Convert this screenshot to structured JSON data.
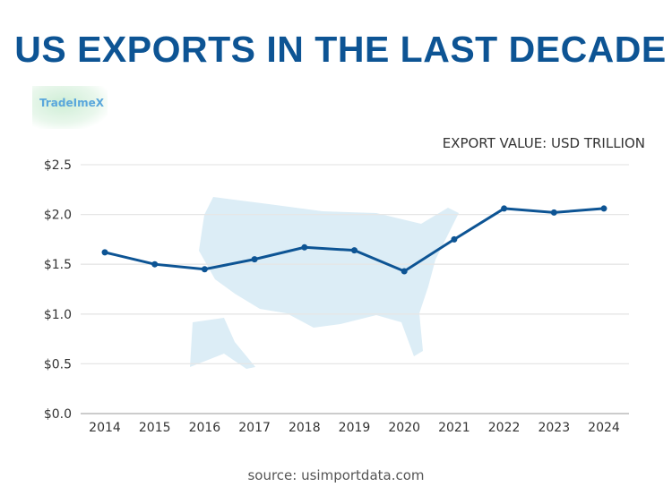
{
  "title": "US EXPORTS IN THE LAST DECADE",
  "logo_text": "TradeImeX",
  "source": "source: usimportdata.com",
  "colors": {
    "title": "#0d5494",
    "line": "#0d5494",
    "map": "#dcedf6"
  },
  "chart_data": {
    "type": "line",
    "title": "US EXPORTS IN THE LAST DECADE",
    "ylabel": "EXPORT VALUE: USD TRILLION",
    "xlabel": "",
    "categories": [
      "2014",
      "2015",
      "2016",
      "2017",
      "2018",
      "2019",
      "2020",
      "2021",
      "2022",
      "2023",
      "2024"
    ],
    "values": [
      1.62,
      1.5,
      1.45,
      1.55,
      1.67,
      1.64,
      1.43,
      1.75,
      2.06,
      2.02,
      2.06
    ],
    "ylim": [
      0,
      2.5
    ],
    "yticks": [
      "$0.0",
      "$0.5",
      "$1.0",
      "$1.5",
      "$2.0",
      "$2.5"
    ],
    "grid": true,
    "background_image": "us-map"
  }
}
